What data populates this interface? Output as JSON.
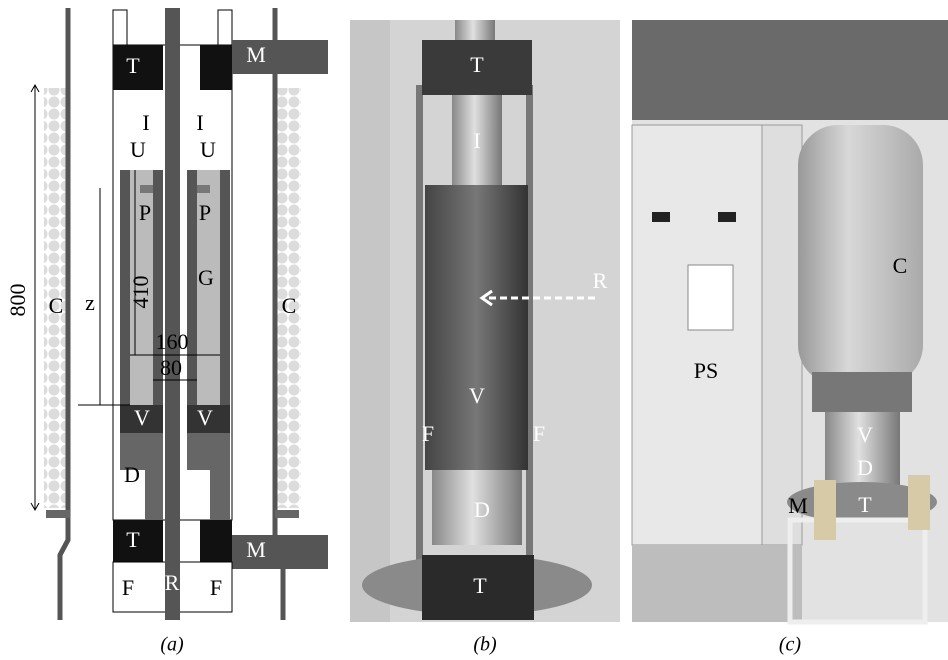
{
  "panel_a": {
    "caption": "(a)",
    "labels": {
      "t_top": "T",
      "m_top": "M",
      "i_left": "I",
      "i_right": "I",
      "u_left": "U",
      "u_right": "U",
      "p_left": "P",
      "p_right": "P",
      "dim_800": "800",
      "dim_z": "z",
      "dim_410": "410",
      "g": "G",
      "c_left": "C",
      "c_right": "C",
      "dim_160": "160",
      "dim_80": "80",
      "v_left": "V",
      "v_right": "V",
      "d": "D",
      "t_bottom": "T",
      "m_bottom": "M",
      "f_left": "F",
      "r": "R",
      "f_right": "F"
    }
  },
  "panel_b": {
    "caption": "(b)",
    "labels": {
      "t_top": "T",
      "i": "I",
      "r": "R",
      "v": "V",
      "f_left": "F",
      "f_right": "F",
      "d": "D",
      "t_bottom": "T"
    }
  },
  "panel_c": {
    "caption": "(c)",
    "labels": {
      "c": "C",
      "ps": "PS",
      "v": "V",
      "d": "D",
      "m": "M",
      "t": "T"
    }
  }
}
